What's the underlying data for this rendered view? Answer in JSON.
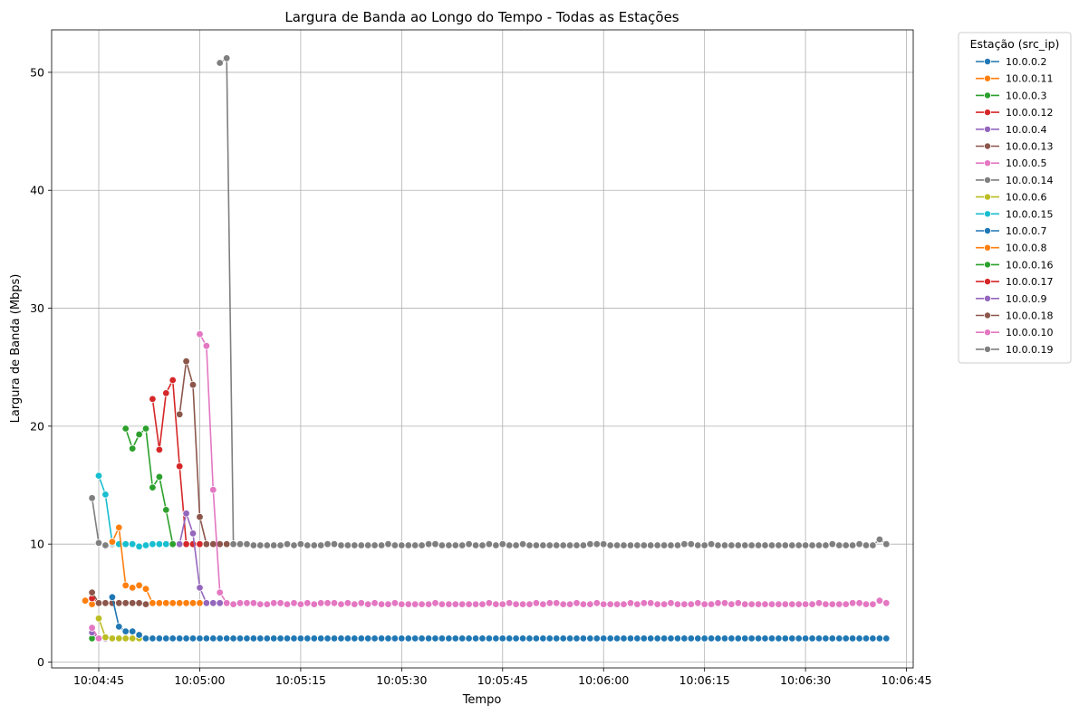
{
  "chart_data": {
    "type": "line",
    "title": "Largura de Banda ao Longo do Tempo - Todas as Estações",
    "xlabel": "Tempo",
    "ylabel": "Largura de Banda (Mbps)",
    "x_ticks": [
      "10:04:45",
      "10:05:00",
      "10:05:15",
      "10:05:30",
      "10:05:45",
      "10:06:00",
      "10:06:15",
      "10:06:30",
      "10:06:45"
    ],
    "y_ticks": [
      "0",
      "10",
      "20",
      "30",
      "40",
      "50"
    ],
    "xlim": [
      "10:04:38",
      "10:06:46"
    ],
    "ylim": [
      -0.5,
      53.6
    ],
    "grid": true,
    "legend_title": "Estação (src_ip)",
    "legend_position": "outside-right",
    "series": [
      {
        "name": "10.0.0.2",
        "color": "#1f77b4",
        "x": [
          "10:04:44",
          "10:04:45",
          "10:04:46",
          "10:04:47",
          "10:04:48",
          "10:04:49"
        ],
        "y": [
          2.1,
          2.0,
          2.0,
          2.0,
          2.0,
          2.0
        ]
      },
      {
        "name": "10.0.0.11",
        "color": "#ff7f0e",
        "x": [
          "10:04:43",
          "10:04:44",
          "10:04:45",
          "10:04:46",
          "10:04:47",
          "10:04:48",
          "10:04:49",
          "10:04:50"
        ],
        "y": [
          5.2,
          4.9,
          5.0,
          5.0,
          5.0,
          5.0,
          5.0,
          5.0
        ]
      },
      {
        "name": "10.0.0.3",
        "color": "#2ca02c",
        "x": [
          "10:04:44",
          "10:04:45",
          "10:04:46",
          "10:04:47"
        ],
        "y": [
          2.0,
          2.0,
          2.0,
          2.0
        ]
      },
      {
        "name": "10.0.0.12",
        "color": "#d62728",
        "x": [
          "10:04:44",
          "10:04:45",
          "10:04:46",
          "10:04:47",
          "10:04:48"
        ],
        "y": [
          5.4,
          5.0,
          5.0,
          5.0,
          5.0
        ]
      },
      {
        "name": "10.0.0.4",
        "color": "#9467bd",
        "x": [
          "10:04:44",
          "10:04:45",
          "10:04:46"
        ],
        "y": [
          2.5,
          2.0,
          2.0
        ]
      },
      {
        "name": "10.0.0.13",
        "color": "#8c564b",
        "x": [
          "10:04:44",
          "10:04:45",
          "10:04:46",
          "10:04:47",
          "10:04:48",
          "10:04:49",
          "10:04:50",
          "10:04:51",
          "10:04:52",
          "10:04:53"
        ],
        "y": [
          5.9,
          5.0,
          5.0,
          5.0,
          5.0,
          5.0,
          5.0,
          5.0,
          4.9,
          5.0
        ]
      },
      {
        "name": "10.0.0.5",
        "color": "#e377c2",
        "x": [
          "10:04:44",
          "10:04:45"
        ],
        "y": [
          2.9,
          2.0
        ]
      },
      {
        "name": "10.0.0.14",
        "color": "#7f7f7f",
        "x": [
          "10:04:44",
          "10:04:45",
          "10:04:46",
          "10:04:47"
        ],
        "y": [
          13.9,
          10.1,
          9.9,
          10.0
        ]
      },
      {
        "name": "10.0.0.6",
        "color": "#bcbd22",
        "x": [
          "10:04:45",
          "10:04:46",
          "10:04:47",
          "10:04:48",
          "10:04:49",
          "10:04:50",
          "10:04:51"
        ],
        "y": [
          3.7,
          2.1,
          2.0,
          2.0,
          2.0,
          2.0,
          2.0
        ]
      },
      {
        "name": "10.0.0.15",
        "color": "#17becf",
        "x": [
          "10:04:45",
          "10:04:46",
          "10:04:47",
          "10:04:48",
          "10:04:49",
          "10:04:50",
          "10:04:51",
          "10:04:52",
          "10:04:53",
          "10:04:54",
          "10:04:55",
          "10:04:56"
        ],
        "y": [
          15.8,
          14.2,
          10.1,
          10.0,
          10.0,
          10.0,
          9.8,
          9.9,
          10.0,
          10.0,
          10.0,
          10.0
        ]
      },
      {
        "name": "10.0.0.7",
        "color": "#1f77b4",
        "x": [
          "10:04:47",
          "10:04:48",
          "10:04:49",
          "10:04:50",
          "10:04:51",
          "10:04:52",
          "10:04:53",
          "10:04:54",
          "10:04:55",
          "10:04:56",
          "10:04:57",
          "10:04:58",
          "10:04:59",
          "10:05:00",
          "10:05:01",
          "10:05:02",
          "10:05:03",
          "10:05:04",
          "10:05:05",
          "10:05:06",
          "10:05:07",
          "10:05:08",
          "10:05:09",
          "10:05:10",
          "10:05:11",
          "10:05:12",
          "10:05:13",
          "10:05:14",
          "10:05:15",
          "10:05:16",
          "10:05:17",
          "10:05:18",
          "10:05:19",
          "10:05:20",
          "10:05:21",
          "10:05:22",
          "10:05:23",
          "10:05:24",
          "10:05:25",
          "10:05:26",
          "10:05:27",
          "10:05:28",
          "10:05:29",
          "10:05:30",
          "10:05:31",
          "10:05:32",
          "10:05:33",
          "10:05:34",
          "10:05:35",
          "10:05:36",
          "10:05:37",
          "10:05:38",
          "10:05:39",
          "10:05:40",
          "10:05:41",
          "10:05:42",
          "10:05:43",
          "10:05:44",
          "10:05:45",
          "10:05:46",
          "10:05:47",
          "10:05:48",
          "10:05:49",
          "10:05:50",
          "10:05:51",
          "10:05:52",
          "10:05:53",
          "10:05:54",
          "10:05:55",
          "10:05:56",
          "10:05:57",
          "10:05:58",
          "10:05:59",
          "10:06:00",
          "10:06:01",
          "10:06:02",
          "10:06:03",
          "10:06:04",
          "10:06:05",
          "10:06:06",
          "10:06:07",
          "10:06:08",
          "10:06:09",
          "10:06:10",
          "10:06:11",
          "10:06:12",
          "10:06:13",
          "10:06:14",
          "10:06:15",
          "10:06:16",
          "10:06:17",
          "10:06:18",
          "10:06:19",
          "10:06:20",
          "10:06:21",
          "10:06:22",
          "10:06:23",
          "10:06:24",
          "10:06:25",
          "10:06:26",
          "10:06:27",
          "10:06:28",
          "10:06:29",
          "10:06:30",
          "10:06:31",
          "10:06:32",
          "10:06:33",
          "10:06:34",
          "10:06:35",
          "10:06:36",
          "10:06:37",
          "10:06:38",
          "10:06:39",
          "10:06:40",
          "10:06:41",
          "10:06:42"
        ],
        "y": [
          5.5,
          3.0,
          2.6,
          2.6,
          2.3,
          2.0,
          2.0,
          2.0,
          2.0,
          2.0,
          2.0,
          2.0,
          2.0,
          2.0,
          2.0,
          2.0,
          2.0,
          2.0,
          2.0,
          2.0,
          2.0,
          2.0,
          2.0,
          2.0,
          2.0,
          2.0,
          2.0,
          2.0,
          2.0,
          2.0,
          2.0,
          2.0,
          2.0,
          2.0,
          2.0,
          2.0,
          2.0,
          2.0,
          2.0,
          2.0,
          2.0,
          2.0,
          2.0,
          2.0,
          2.0,
          2.0,
          2.0,
          2.0,
          2.0,
          2.0,
          2.0,
          2.0,
          2.0,
          2.0,
          2.0,
          2.0,
          2.0,
          2.0,
          2.0,
          2.0,
          2.0,
          2.0,
          2.0,
          2.0,
          2.0,
          2.0,
          2.0,
          2.0,
          2.0,
          2.0,
          2.0,
          2.0,
          2.0,
          2.0,
          2.0,
          2.0,
          2.0,
          2.0,
          2.0,
          2.0,
          2.0,
          2.0,
          2.0,
          2.0,
          2.0,
          2.0,
          2.0,
          2.0,
          2.0,
          2.0,
          2.0,
          2.0,
          2.0,
          2.0,
          2.0,
          2.0,
          2.0,
          2.0,
          2.0,
          2.0,
          2.0,
          2.0,
          2.0,
          2.0,
          2.0,
          2.0,
          2.0,
          2.0,
          2.0,
          2.0,
          2.0,
          2.0,
          2.0,
          2.0,
          2.0,
          2.0
        ]
      },
      {
        "name": "10.0.0.8",
        "color": "#ff7f0e",
        "x": [
          "10:04:47",
          "10:04:48",
          "10:04:49",
          "10:04:50",
          "10:04:51",
          "10:04:52",
          "10:04:53",
          "10:04:54",
          "10:04:55",
          "10:04:56",
          "10:04:57",
          "10:04:58",
          "10:04:59",
          "10:05:00"
        ],
        "y": [
          10.2,
          11.4,
          6.5,
          6.3,
          6.5,
          6.2,
          5.0,
          5.0,
          5.0,
          5.0,
          5.0,
          5.0,
          5.0,
          5.0
        ]
      },
      {
        "name": "10.0.0.16",
        "color": "#2ca02c",
        "x": [
          "10:04:49",
          "10:04:50",
          "10:04:51",
          "10:04:52",
          "10:04:53",
          "10:04:54",
          "10:04:55",
          "10:04:56"
        ],
        "y": [
          19.8,
          18.1,
          19.3,
          19.8,
          14.8,
          15.7,
          12.9,
          10.0
        ]
      },
      {
        "name": "10.0.0.17",
        "color": "#d62728",
        "x": [
          "10:04:53",
          "10:04:54",
          "10:04:55",
          "10:04:56",
          "10:04:57",
          "10:04:58",
          "10:04:59",
          "10:05:00",
          "10:05:01",
          "10:05:02",
          "10:05:03"
        ],
        "y": [
          22.3,
          18.0,
          22.8,
          23.9,
          16.6,
          10.0,
          10.0,
          10.0,
          10.0,
          10.0,
          10.0
        ]
      },
      {
        "name": "10.0.0.9",
        "color": "#9467bd",
        "x": [
          "10:04:57",
          "10:04:58",
          "10:04:59",
          "10:05:00",
          "10:05:01",
          "10:05:02",
          "10:05:03"
        ],
        "y": [
          10.0,
          12.6,
          10.9,
          6.3,
          5.0,
          5.0,
          5.0
        ]
      },
      {
        "name": "10.0.0.18",
        "color": "#8c564b",
        "x": [
          "10:04:57",
          "10:04:58",
          "10:04:59",
          "10:05:00",
          "10:05:01",
          "10:05:02",
          "10:05:03",
          "10:05:04"
        ],
        "y": [
          21.0,
          25.5,
          23.5,
          12.3,
          10.0,
          10.0,
          10.0,
          10.0
        ]
      },
      {
        "name": "10.0.0.10",
        "color": "#e377c2",
        "x": [
          "10:05:00",
          "10:05:01",
          "10:05:02",
          "10:05:03",
          "10:05:04",
          "10:05:05",
          "10:05:06",
          "10:05:07",
          "10:05:08",
          "10:05:09",
          "10:05:10",
          "10:05:11",
          "10:05:12",
          "10:05:13",
          "10:05:14",
          "10:05:15",
          "10:05:16",
          "10:05:17",
          "10:05:18",
          "10:05:19",
          "10:05:20",
          "10:05:21",
          "10:05:22",
          "10:05:23",
          "10:05:24",
          "10:05:25",
          "10:05:26",
          "10:05:27",
          "10:05:28",
          "10:05:29",
          "10:05:30",
          "10:05:31",
          "10:05:32",
          "10:05:33",
          "10:05:34",
          "10:05:35",
          "10:05:36",
          "10:05:37",
          "10:05:38",
          "10:05:39",
          "10:05:40",
          "10:05:41",
          "10:05:42",
          "10:05:43",
          "10:05:44",
          "10:05:45",
          "10:05:46",
          "10:05:47",
          "10:05:48",
          "10:05:49",
          "10:05:50",
          "10:05:51",
          "10:05:52",
          "10:05:53",
          "10:05:54",
          "10:05:55",
          "10:05:56",
          "10:05:57",
          "10:05:58",
          "10:05:59",
          "10:06:00",
          "10:06:01",
          "10:06:02",
          "10:06:03",
          "10:06:04",
          "10:06:05",
          "10:06:06",
          "10:06:07",
          "10:06:08",
          "10:06:09",
          "10:06:10",
          "10:06:11",
          "10:06:12",
          "10:06:13",
          "10:06:14",
          "10:06:15",
          "10:06:16",
          "10:06:17",
          "10:06:18",
          "10:06:19",
          "10:06:20",
          "10:06:21",
          "10:06:22",
          "10:06:23",
          "10:06:24",
          "10:06:25",
          "10:06:26",
          "10:06:27",
          "10:06:28",
          "10:06:29",
          "10:06:30",
          "10:06:31",
          "10:06:32",
          "10:06:33",
          "10:06:34",
          "10:06:35",
          "10:06:36",
          "10:06:37",
          "10:06:38",
          "10:06:39",
          "10:06:40",
          "10:06:41",
          "10:06:42"
        ],
        "y": [
          27.8,
          26.8,
          14.6,
          5.9,
          5.0,
          4.9,
          5.0,
          5.0,
          5.0,
          4.9,
          4.9,
          5.0,
          5.0,
          4.9,
          5.0,
          4.9,
          5.0,
          4.9,
          5.0,
          5.0,
          5.0,
          4.9,
          5.0,
          4.9,
          5.0,
          4.9,
          5.0,
          4.9,
          4.9,
          5.0,
          4.9,
          4.9,
          4.9,
          4.9,
          4.9,
          5.0,
          4.9,
          4.9,
          4.9,
          4.9,
          4.9,
          4.9,
          4.9,
          5.0,
          4.9,
          4.9,
          5.0,
          4.9,
          4.9,
          4.9,
          5.0,
          4.9,
          5.0,
          5.0,
          4.9,
          4.9,
          5.0,
          4.9,
          4.9,
          5.0,
          4.9,
          4.9,
          4.9,
          4.9,
          5.0,
          4.9,
          5.0,
          5.0,
          4.9,
          4.9,
          5.0,
          4.9,
          4.9,
          4.9,
          5.0,
          4.9,
          4.9,
          5.0,
          5.0,
          4.9,
          5.0,
          4.9,
          4.9,
          4.9,
          4.9,
          4.9,
          4.9,
          4.9,
          4.9,
          4.9,
          4.9,
          4.9,
          5.0,
          4.9,
          4.9,
          4.9,
          4.9,
          5.0,
          5.0,
          4.9,
          4.9,
          5.2,
          5.0
        ]
      },
      {
        "name": "10.0.0.19",
        "color": "#7f7f7f",
        "x": [
          "10:05:03",
          "10:05:04",
          "10:05:05",
          "10:05:06",
          "10:05:07",
          "10:05:08",
          "10:05:09",
          "10:05:10",
          "10:05:11",
          "10:05:12",
          "10:05:13",
          "10:05:14",
          "10:05:15",
          "10:05:16",
          "10:05:17",
          "10:05:18",
          "10:05:19",
          "10:05:20",
          "10:05:21",
          "10:05:22",
          "10:05:23",
          "10:05:24",
          "10:05:25",
          "10:05:26",
          "10:05:27",
          "10:05:28",
          "10:05:29",
          "10:05:30",
          "10:05:31",
          "10:05:32",
          "10:05:33",
          "10:05:34",
          "10:05:35",
          "10:05:36",
          "10:05:37",
          "10:05:38",
          "10:05:39",
          "10:05:40",
          "10:05:41",
          "10:05:42",
          "10:05:43",
          "10:05:44",
          "10:05:45",
          "10:05:46",
          "10:05:47",
          "10:05:48",
          "10:05:49",
          "10:05:50",
          "10:05:51",
          "10:05:52",
          "10:05:53",
          "10:05:54",
          "10:05:55",
          "10:05:56",
          "10:05:57",
          "10:05:58",
          "10:05:59",
          "10:06:00",
          "10:06:01",
          "10:06:02",
          "10:06:03",
          "10:06:04",
          "10:06:05",
          "10:06:06",
          "10:06:07",
          "10:06:08",
          "10:06:09",
          "10:06:10",
          "10:06:11",
          "10:06:12",
          "10:06:13",
          "10:06:14",
          "10:06:15",
          "10:06:16",
          "10:06:17",
          "10:06:18",
          "10:06:19",
          "10:06:20",
          "10:06:21",
          "10:06:22",
          "10:06:23",
          "10:06:24",
          "10:06:25",
          "10:06:26",
          "10:06:27",
          "10:06:28",
          "10:06:29",
          "10:06:30",
          "10:06:31",
          "10:06:32",
          "10:06:33",
          "10:06:34",
          "10:06:35",
          "10:06:36",
          "10:06:37",
          "10:06:38",
          "10:06:39",
          "10:06:40",
          "10:06:41",
          "10:06:42"
        ],
        "y": [
          50.8,
          51.2,
          10.0,
          10.0,
          10.0,
          9.9,
          9.9,
          9.9,
          9.9,
          9.9,
          10.0,
          9.9,
          10.0,
          9.9,
          9.9,
          9.9,
          10.0,
          10.0,
          9.9,
          9.9,
          9.9,
          9.9,
          9.9,
          9.9,
          9.9,
          10.0,
          9.9,
          9.9,
          9.9,
          9.9,
          9.9,
          10.0,
          10.0,
          9.9,
          9.9,
          9.9,
          9.9,
          10.0,
          9.9,
          9.9,
          10.0,
          9.9,
          10.0,
          9.9,
          9.9,
          10.0,
          9.9,
          9.9,
          9.9,
          9.9,
          9.9,
          9.9,
          9.9,
          9.9,
          9.9,
          10.0,
          10.0,
          10.0,
          9.9,
          9.9,
          9.9,
          9.9,
          9.9,
          9.9,
          9.9,
          9.9,
          9.9,
          9.9,
          9.9,
          10.0,
          10.0,
          9.9,
          9.9,
          10.0,
          9.9,
          9.9,
          9.9,
          9.9,
          9.9,
          9.9,
          9.9,
          9.9,
          9.9,
          9.9,
          9.9,
          9.9,
          9.9,
          9.9,
          9.9,
          9.9,
          9.9,
          10.0,
          9.9,
          9.9,
          9.9,
          10.0,
          9.9,
          9.9,
          10.4,
          10.0
        ]
      }
    ]
  }
}
